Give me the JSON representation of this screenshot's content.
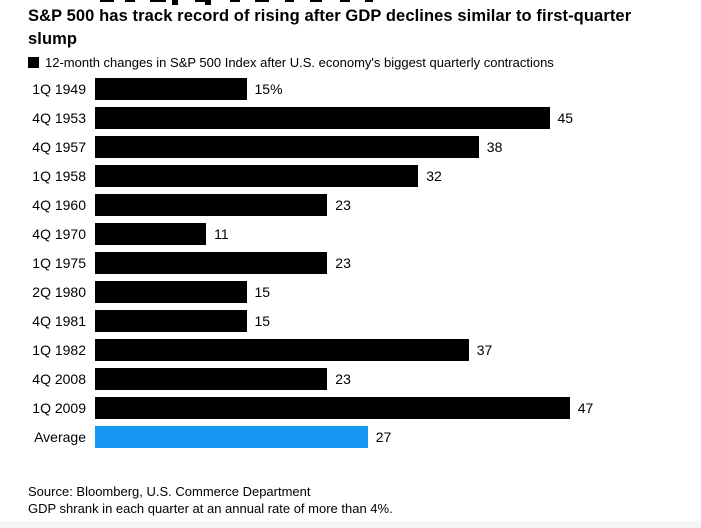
{
  "header": {
    "title_lines": [
      "S&P 500 has track record of rising after GDP declines similar to first-quarter",
      "slump"
    ]
  },
  "legend": {
    "marker_color": "#000000",
    "label": "12-month changes in S&P 500 Index after U.S. economy's biggest quarterly contractions"
  },
  "chart_data": {
    "type": "bar",
    "orientation": "horizontal",
    "title": "S&P 500 has track record of rising after GDP declines similar to first-quarter slump",
    "subtitle": "12-month changes in S&P 500 Index after U.S. economy's biggest quarterly contractions",
    "categories": [
      "1Q 1949",
      "4Q 1953",
      "4Q 1957",
      "1Q 1958",
      "4Q 1960",
      "4Q 1970",
      "1Q 1975",
      "2Q 1980",
      "4Q 1981",
      "1Q 1982",
      "4Q 2008",
      "1Q 2009",
      "Average"
    ],
    "values": [
      15,
      45,
      38,
      32,
      23,
      11,
      23,
      15,
      15,
      37,
      23,
      47,
      27
    ],
    "value_labels": [
      "15%",
      "45",
      "38",
      "32",
      "23",
      "11",
      "23",
      "15",
      "15",
      "37",
      "23",
      "47",
      "27"
    ],
    "unit": "%",
    "xlim": [
      0,
      50
    ],
    "grid": false,
    "legend_position": "top",
    "bar_color": "#000000",
    "highlight_index": 12,
    "highlight_color": "#1697f2"
  },
  "footer": {
    "source_line1": "Source: Bloomberg, U.S. Commerce Department",
    "source_line2": "GDP shrank in each quarter at an annual rate of more than 4%."
  }
}
